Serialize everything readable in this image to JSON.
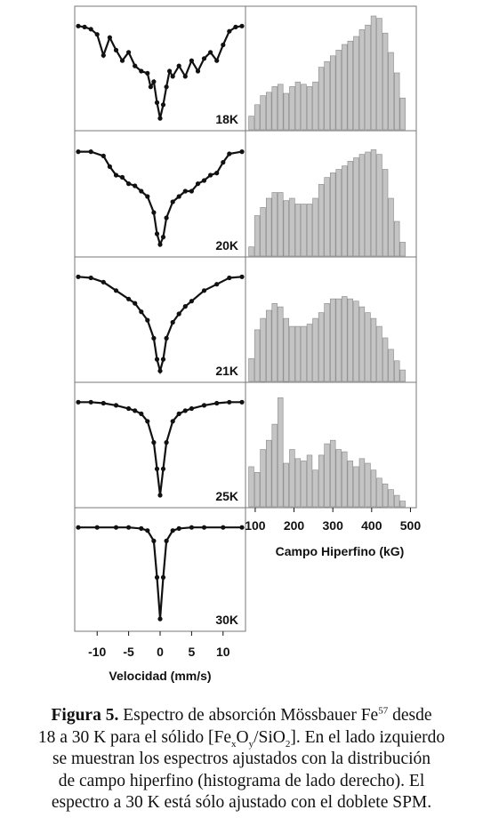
{
  "caption": {
    "label": "Figura 5.",
    "line1_text": "Espectro de absorción Mössbauer Fe",
    "line1_sup": "57",
    "line1_end": "desde",
    "line2_a": "18 a 30 K para el sólido [Fe",
    "line2_sub_x": "x",
    "line2_b": "O",
    "line2_sub_y": "y",
    "line2_c": "/SiO",
    "line2_sub_2": "2",
    "line2_d": "]. En el lado izquierdo",
    "line3": "se muestran los espectros ajustados con la distribución",
    "line4": "de campo hiperfino (histograma de lado derecho). El",
    "line5": "espectro a 30 K está sólo ajustado con el doblete SPM."
  },
  "chart_data": [
    {
      "type": "scatter",
      "panel": "18K",
      "temperature_label": "18K",
      "xlabel": "Velocidad (mm/s)",
      "xticks": [
        "-10",
        "-5",
        "0",
        "5",
        "10"
      ],
      "xlim": [
        -13,
        13
      ],
      "ylim": [
        0,
        1
      ],
      "x": [
        -13,
        -12,
        -11,
        -10,
        -9,
        -8,
        -7,
        -6,
        -5,
        -4,
        -3,
        -2,
        -1.5,
        -1,
        -0.5,
        0,
        0.5,
        1,
        1.5,
        2,
        3,
        4,
        5,
        6,
        7,
        8,
        9,
        10,
        11,
        12,
        13
      ],
      "y": [
        0.93,
        0.92,
        0.9,
        0.85,
        0.65,
        0.82,
        0.7,
        0.6,
        0.68,
        0.55,
        0.5,
        0.48,
        0.35,
        0.4,
        0.2,
        0.05,
        0.18,
        0.35,
        0.5,
        0.45,
        0.55,
        0.45,
        0.6,
        0.5,
        0.62,
        0.68,
        0.6,
        0.75,
        0.88,
        0.92,
        0.93
      ]
    },
    {
      "type": "scatter",
      "panel": "20K",
      "temperature_label": "20K",
      "xlim": [
        -13,
        13
      ],
      "ylim": [
        0,
        1
      ],
      "x": [
        -13,
        -11,
        -9,
        -8,
        -7,
        -6,
        -5,
        -4,
        -3,
        -2,
        -1,
        -0.5,
        0,
        0.5,
        1,
        2,
        3,
        4,
        5,
        6,
        7,
        8,
        9,
        10,
        11,
        13
      ],
      "y": [
        0.92,
        0.92,
        0.88,
        0.78,
        0.7,
        0.68,
        0.62,
        0.6,
        0.55,
        0.5,
        0.35,
        0.15,
        0.05,
        0.12,
        0.3,
        0.45,
        0.5,
        0.55,
        0.55,
        0.62,
        0.65,
        0.7,
        0.72,
        0.82,
        0.9,
        0.92
      ]
    },
    {
      "type": "scatter",
      "panel": "21K",
      "temperature_label": "21K",
      "xlim": [
        -13,
        13
      ],
      "ylim": [
        0,
        1
      ],
      "x": [
        -13,
        -11,
        -9,
        -7,
        -5,
        -4,
        -3,
        -2,
        -1,
        -0.5,
        0,
        0.5,
        1,
        2,
        3,
        4,
        5,
        7,
        9,
        11,
        13
      ],
      "y": [
        0.93,
        0.92,
        0.88,
        0.8,
        0.72,
        0.68,
        0.6,
        0.52,
        0.35,
        0.15,
        0.04,
        0.15,
        0.35,
        0.5,
        0.58,
        0.65,
        0.7,
        0.8,
        0.86,
        0.92,
        0.93
      ]
    },
    {
      "type": "scatter",
      "panel": "25K",
      "temperature_label": "25K",
      "xlim": [
        -13,
        13
      ],
      "ylim": [
        0,
        1
      ],
      "x": [
        -13,
        -11,
        -9,
        -7,
        -5,
        -4,
        -3,
        -2,
        -1,
        -0.5,
        0,
        0.5,
        1,
        2,
        3,
        4,
        5,
        7,
        9,
        11,
        13
      ],
      "y": [
        0.93,
        0.93,
        0.92,
        0.9,
        0.87,
        0.85,
        0.82,
        0.75,
        0.55,
        0.3,
        0.05,
        0.3,
        0.55,
        0.75,
        0.82,
        0.85,
        0.87,
        0.9,
        0.92,
        0.93,
        0.93
      ]
    },
    {
      "type": "scatter",
      "panel": "30K",
      "temperature_label": "30K",
      "xlim": [
        -13,
        13
      ],
      "ylim": [
        0,
        1
      ],
      "x": [
        -13,
        -10,
        -7,
        -5,
        -3,
        -2,
        -1,
        -0.5,
        0,
        0.5,
        1,
        2,
        3,
        5,
        7,
        10,
        13
      ],
      "y": [
        0.93,
        0.93,
        0.93,
        0.93,
        0.92,
        0.9,
        0.8,
        0.45,
        0.05,
        0.45,
        0.8,
        0.9,
        0.92,
        0.93,
        0.93,
        0.93,
        0.93
      ]
    },
    {
      "type": "bar",
      "panel": "18K-hist",
      "xlabel": "Campo Hiperfino (kG)",
      "xticks": [
        "100",
        "200",
        "300",
        "400",
        "500"
      ],
      "xlim": [
        75,
        515
      ],
      "ylim": [
        0,
        1
      ],
      "x": [
        90,
        105,
        120,
        135,
        150,
        165,
        180,
        195,
        210,
        225,
        240,
        255,
        270,
        285,
        300,
        315,
        330,
        345,
        360,
        375,
        390,
        405,
        420,
        435,
        450,
        465,
        480
      ],
      "values": [
        0.12,
        0.22,
        0.3,
        0.33,
        0.38,
        0.4,
        0.32,
        0.38,
        0.42,
        0.4,
        0.38,
        0.42,
        0.55,
        0.6,
        0.65,
        0.7,
        0.75,
        0.78,
        0.82,
        0.88,
        0.92,
        1.0,
        0.98,
        0.85,
        0.68,
        0.5,
        0.28
      ]
    },
    {
      "type": "bar",
      "panel": "20K-hist",
      "xlim": [
        75,
        515
      ],
      "ylim": [
        0,
        1
      ],
      "x": [
        90,
        105,
        120,
        135,
        150,
        165,
        180,
        195,
        210,
        225,
        240,
        255,
        270,
        285,
        300,
        315,
        330,
        345,
        360,
        375,
        390,
        405,
        420,
        435,
        450,
        465,
        480
      ],
      "values": [
        0.08,
        0.35,
        0.42,
        0.5,
        0.55,
        0.55,
        0.48,
        0.5,
        0.45,
        0.45,
        0.45,
        0.5,
        0.62,
        0.68,
        0.72,
        0.75,
        0.78,
        0.82,
        0.85,
        0.88,
        0.9,
        0.92,
        0.88,
        0.75,
        0.5,
        0.3,
        0.12
      ]
    },
    {
      "type": "bar",
      "panel": "21K-hist",
      "xlim": [
        75,
        515
      ],
      "ylim": [
        0,
        1
      ],
      "x": [
        90,
        105,
        120,
        135,
        150,
        165,
        180,
        195,
        210,
        225,
        240,
        255,
        270,
        285,
        300,
        315,
        330,
        345,
        360,
        375,
        390,
        405,
        420,
        435,
        450,
        465,
        480
      ],
      "values": [
        0.2,
        0.45,
        0.55,
        0.62,
        0.68,
        0.65,
        0.55,
        0.48,
        0.48,
        0.48,
        0.5,
        0.55,
        0.6,
        0.68,
        0.72,
        0.72,
        0.74,
        0.72,
        0.7,
        0.65,
        0.6,
        0.55,
        0.48,
        0.38,
        0.28,
        0.18,
        0.1
      ]
    },
    {
      "type": "bar",
      "panel": "25K-hist",
      "xlim": [
        75,
        515
      ],
      "ylim": [
        0,
        1
      ],
      "x": [
        90,
        105,
        120,
        135,
        150,
        165,
        180,
        195,
        210,
        225,
        240,
        255,
        270,
        285,
        300,
        315,
        330,
        345,
        360,
        375,
        390,
        405,
        420,
        435,
        450,
        465,
        480
      ],
      "values": [
        0.35,
        0.3,
        0.5,
        0.58,
        0.72,
        0.95,
        0.38,
        0.5,
        0.42,
        0.4,
        0.45,
        0.32,
        0.45,
        0.55,
        0.58,
        0.5,
        0.48,
        0.4,
        0.35,
        0.42,
        0.38,
        0.32,
        0.25,
        0.2,
        0.15,
        0.1,
        0.05
      ]
    }
  ]
}
